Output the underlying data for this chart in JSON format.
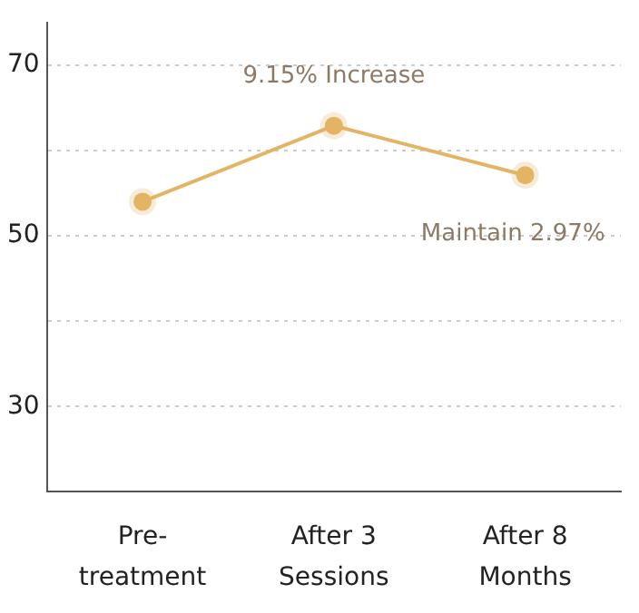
{
  "chart_data": {
    "type": "line",
    "categories": [
      "Pre- treatment",
      "After 3 Sessions",
      "After 8 Months"
    ],
    "series": [
      {
        "color": "#e2b464",
        "values": [
          54,
          62.9,
          57.1
        ]
      }
    ],
    "ylim": [
      20,
      75
    ],
    "yticks": [
      {
        "value": 30,
        "label": "30"
      },
      {
        "value": 40,
        "label": null
      },
      {
        "value": 50,
        "label": "50"
      },
      {
        "value": 60,
        "label": null
      },
      {
        "value": 70,
        "label": "70"
      }
    ],
    "grid": "y",
    "legend": false,
    "marker": "circle",
    "line_style": "solid",
    "annotations": [
      {
        "text": "9.15% Increase",
        "x": "After 3 Sessions",
        "y": 62.9
      },
      {
        "text": "Maintain 2.97%",
        "x": "After 8 Months",
        "y": 57.1
      }
    ]
  }
}
